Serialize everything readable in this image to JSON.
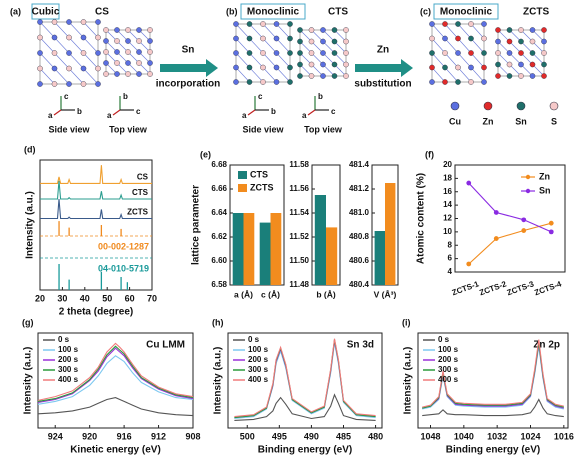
{
  "structures": [
    {
      "panel_label": "(a)",
      "phase": "Cubic",
      "compound": "CS",
      "views": [
        "Side view",
        "Top view"
      ],
      "axes": [
        [
          "c",
          "a",
          "b"
        ],
        [
          "b",
          "a",
          "c"
        ]
      ]
    },
    {
      "panel_label": "(b)",
      "phase": "Monoclinic",
      "compound": "CTS",
      "views": [
        "Side view",
        "Top view"
      ],
      "axes": [
        [
          "c",
          "a",
          "b"
        ],
        [
          "b",
          "a",
          "c"
        ]
      ]
    },
    {
      "panel_label": "(c)",
      "phase": "Monoclinic",
      "compound": "ZCTS"
    }
  ],
  "arrows": [
    {
      "top": "Sn",
      "bottom": "incorporation"
    },
    {
      "top": "Zn",
      "bottom": "substitution"
    }
  ],
  "atom_legend": [
    {
      "name": "Cu",
      "color": "#5b6fe0"
    },
    {
      "name": "Zn",
      "color": "#e02a2a"
    },
    {
      "name": "Sn",
      "color": "#1f6f6a"
    },
    {
      "name": "S",
      "color": "#f6c9c9"
    }
  ],
  "chart_data": [
    {
      "type": "line",
      "panel_label": "(d)",
      "x_label": "2 theta (degree)",
      "y_label": "Intensity (a.u.)",
      "x": [
        20,
        27.8,
        28.5,
        29.2,
        32.4,
        33,
        33.6,
        46.8,
        47.4,
        48,
        55.6,
        56.2,
        56.8,
        70
      ],
      "xlim": [
        20,
        70
      ],
      "xticks": [
        20,
        30,
        40,
        50,
        60,
        70
      ],
      "ylim": [
        0,
        10
      ],
      "series": [
        {
          "name": "CS",
          "color": "#f0a030",
          "values": [
            8.2,
            8.2,
            8.7,
            8.2,
            8.2,
            8.5,
            8.2,
            8.2,
            9.6,
            8.2,
            8.2,
            8.5,
            8.2,
            8.2
          ]
        },
        {
          "name": "CTS",
          "color": "#2a9d8f",
          "values": [
            7.0,
            7.0,
            8.4,
            7.0,
            7.0,
            7.1,
            7.0,
            7.0,
            7.6,
            7.0,
            7.0,
            7.3,
            7.0,
            7.0
          ]
        },
        {
          "name": "ZCTS",
          "color": "#3a5a8a",
          "values": [
            5.5,
            5.5,
            7.0,
            5.5,
            5.5,
            5.6,
            5.5,
            5.5,
            6.2,
            5.5,
            5.5,
            5.8,
            5.5,
            5.5
          ]
        }
      ],
      "references": [
        {
          "name": "00-002-1287",
          "color": "#f08a1e",
          "x": [
            28.5,
            33,
            47.4,
            56.2
          ],
          "values": [
            5.3,
            4.8,
            5.0,
            4.7
          ]
        },
        {
          "name": "04-010-5719",
          "color": "#1a9a9a",
          "x": [
            28.5,
            33,
            47.4,
            56.2,
            59
          ],
          "values": [
            2.0,
            0.8,
            1.4,
            1.0,
            0.6
          ]
        }
      ]
    },
    {
      "type": "bar",
      "panel_label": "(e)",
      "y_label": "lattice parameter",
      "categories": [
        "a (Å)",
        "c (Å)"
      ],
      "series": [
        {
          "name": "CTS",
          "color": "#1a7f7a",
          "values": [
            6.64,
            6.632
          ]
        },
        {
          "name": "ZCTS",
          "color": "#f28c1e",
          "values": [
            6.64,
            6.64
          ]
        }
      ],
      "ylim": [
        6.58,
        6.68
      ],
      "yticks": [
        6.58,
        {
          "value": 6.6,
          "label": "6.60"
        },
        6.62,
        6.64,
        6.66,
        6.68
      ],
      "legend": "upper left"
    },
    {
      "type": "bar",
      "categories": [
        "b (Å)"
      ],
      "series": [
        {
          "color": "#1a7f7a",
          "values": [
            11.555
          ]
        },
        {
          "color": "#f28c1e",
          "values": [
            11.528
          ]
        }
      ],
      "ylim": [
        11.48,
        11.58
      ],
      "yticks": [
        11.48,
        {
          "value": 11.5,
          "label": "11.50"
        },
        11.52,
        11.54,
        11.56,
        11.58
      ]
    },
    {
      "type": "bar",
      "categories": [
        "V (Å³)"
      ],
      "series": [
        {
          "color": "#1a7f7a",
          "values": [
            480.85
          ]
        },
        {
          "color": "#f28c1e",
          "values": [
            481.25
          ]
        }
      ],
      "ylim": [
        480.4,
        481.4
      ],
      "yticks": [
        480.4,
        480.6,
        480.8,
        {
          "value": 481,
          "label": "481.0"
        },
        481.2,
        481.4
      ]
    },
    {
      "type": "line",
      "panel_label": "(f)",
      "y_label": "Atomic content (%)",
      "categories": [
        "ZCTS-1",
        "ZCTS-2",
        "ZCTS-3",
        "ZCTS-4"
      ],
      "series": [
        {
          "name": "Zn",
          "color": "#f28c1e",
          "values": [
            5.2,
            9.0,
            10.2,
            11.3
          ]
        },
        {
          "name": "Sn",
          "color": "#8a2be2",
          "values": [
            17.3,
            12.9,
            11.8,
            10.0
          ]
        }
      ],
      "ylim": [
        4,
        20
      ],
      "yticks": [
        4,
        6,
        8,
        10,
        12,
        14,
        16,
        18,
        20
      ],
      "markers": true,
      "legend": "upper right"
    },
    {
      "type": "line",
      "panel_label": "(g)",
      "annotation": "Cu LMM",
      "x_label": "Kinetic energy (eV)",
      "y_label": "Intensity (a.u.)",
      "x": [
        926,
        924,
        922,
        920,
        919,
        918,
        917,
        916.5,
        916,
        915,
        914,
        912,
        910,
        908
      ],
      "xlim": [
        926,
        908
      ],
      "xticks": [
        924,
        920,
        916,
        912,
        908
      ],
      "ylim": [
        0,
        10
      ],
      "legend": "upper left",
      "series": [
        {
          "name": "0 s",
          "color": "#555555",
          "values": [
            1.5,
            1.6,
            1.8,
            2.2,
            2.6,
            3.0,
            3.2,
            3.0,
            2.8,
            2.4,
            2.0,
            1.6,
            1.4,
            1.3
          ]
        },
        {
          "name": "100 s",
          "color": "#7ec8f0",
          "values": [
            2.5,
            2.8,
            3.3,
            4.5,
            5.5,
            6.8,
            7.6,
            7.3,
            7.0,
            5.8,
            4.8,
            3.8,
            3.2,
            3.0
          ]
        },
        {
          "name": "200 s",
          "color": "#9b30d9",
          "values": [
            2.7,
            3.0,
            3.6,
            5.0,
            6.0,
            7.5,
            8.4,
            8.0,
            7.6,
            6.3,
            5.2,
            4.1,
            3.4,
            3.1
          ]
        },
        {
          "name": "300 s",
          "color": "#2a9a3a",
          "values": [
            2.8,
            3.1,
            3.7,
            5.1,
            6.2,
            7.7,
            8.6,
            8.2,
            7.8,
            6.5,
            5.3,
            4.2,
            3.5,
            3.2
          ]
        },
        {
          "name": "400 s",
          "color": "#f07a7a",
          "values": [
            2.9,
            3.3,
            3.9,
            5.3,
            6.4,
            8.0,
            8.9,
            8.5,
            8.0,
            6.7,
            5.5,
            4.3,
            3.6,
            3.3
          ]
        }
      ]
    },
    {
      "type": "line",
      "panel_label": "(h)",
      "annotation": "Sn 3d",
      "x_label": "Binding energy (eV)",
      "y_label": "Intensity (a.u.)",
      "x": [
        502,
        499,
        497,
        496,
        495.5,
        494.8,
        494,
        493,
        490,
        488,
        487,
        486.4,
        485.8,
        485,
        483,
        480
      ],
      "xlim": [
        503,
        479
      ],
      "xticks": [
        500,
        495,
        490,
        485,
        480
      ],
      "ylim": [
        0,
        10
      ],
      "legend": "upper left",
      "series": [
        {
          "name": "0 s",
          "color": "#555555",
          "values": [
            0.8,
            0.9,
            1.2,
            1.8,
            2.6,
            3.2,
            2.5,
            1.5,
            1.0,
            1.2,
            2.3,
            3.5,
            2.6,
            1.3,
            0.9,
            0.8
          ]
        },
        {
          "name": "100 s",
          "color": "#7ec8f0",
          "values": [
            1.0,
            1.2,
            2.0,
            4.4,
            6.8,
            8.1,
            6.3,
            2.9,
            1.5,
            2.1,
            5.8,
            9.0,
            6.8,
            2.7,
            1.3,
            1.1
          ]
        },
        {
          "name": "200 s",
          "color": "#9b30d9",
          "values": [
            1.1,
            1.3,
            2.1,
            4.5,
            7.0,
            8.3,
            6.5,
            3.0,
            1.6,
            2.2,
            6.0,
            9.2,
            7.0,
            2.8,
            1.4,
            1.2
          ]
        },
        {
          "name": "300 s",
          "color": "#2a9a3a",
          "values": [
            1.1,
            1.3,
            2.1,
            4.6,
            7.1,
            8.4,
            6.6,
            3.0,
            1.6,
            2.2,
            6.1,
            9.3,
            7.1,
            2.8,
            1.4,
            1.2
          ]
        },
        {
          "name": "400 s",
          "color": "#f07a7a",
          "values": [
            1.2,
            1.4,
            2.2,
            4.7,
            7.2,
            8.5,
            6.7,
            3.1,
            1.7,
            2.3,
            6.2,
            9.4,
            7.2,
            2.9,
            1.5,
            1.3
          ]
        }
      ]
    },
    {
      "type": "line",
      "panel_label": "(i)",
      "annotation": "Zn 2p",
      "x_label": "Binding energy (eV)",
      "y_label": "Intensity (a.u.)",
      "x": [
        1050,
        1048,
        1046,
        1045,
        1044,
        1042,
        1040,
        1035,
        1030,
        1026,
        1024,
        1023,
        1022,
        1021,
        1020,
        1018,
        1016
      ],
      "xlim": [
        1051,
        1015
      ],
      "xticks": [
        1048,
        1040,
        1032,
        1024,
        1016
      ],
      "ylim": [
        0,
        10
      ],
      "legend": "upper left",
      "series": [
        {
          "name": "0 s",
          "color": "#555555",
          "values": [
            1.3,
            1.4,
            1.5,
            1.9,
            1.5,
            1.4,
            1.4,
            1.3,
            1.3,
            1.4,
            1.6,
            2.2,
            3.0,
            2.1,
            1.5,
            1.3,
            1.2
          ]
        },
        {
          "name": "100 s",
          "color": "#7ec8f0",
          "values": [
            2.0,
            2.2,
            3.0,
            5.5,
            3.3,
            2.4,
            2.3,
            2.2,
            2.2,
            2.4,
            3.3,
            5.7,
            8.6,
            5.2,
            2.8,
            2.2,
            2.0
          ]
        },
        {
          "name": "200 s",
          "color": "#9b30d9",
          "values": [
            2.1,
            2.3,
            3.1,
            5.7,
            3.4,
            2.5,
            2.4,
            2.3,
            2.3,
            2.5,
            3.4,
            5.9,
            8.9,
            5.4,
            2.9,
            2.3,
            2.1
          ]
        },
        {
          "name": "300 s",
          "color": "#2a9a3a",
          "values": [
            2.1,
            2.3,
            3.2,
            5.8,
            3.5,
            2.6,
            2.5,
            2.4,
            2.4,
            2.6,
            3.5,
            6.0,
            9.0,
            5.5,
            3.0,
            2.4,
            2.2
          ]
        },
        {
          "name": "400 s",
          "color": "#f07a7a",
          "values": [
            2.2,
            2.4,
            3.3,
            6.0,
            3.6,
            2.7,
            2.6,
            2.5,
            2.5,
            2.7,
            3.6,
            6.2,
            9.3,
            5.7,
            3.1,
            2.5,
            2.3
          ]
        }
      ]
    }
  ]
}
